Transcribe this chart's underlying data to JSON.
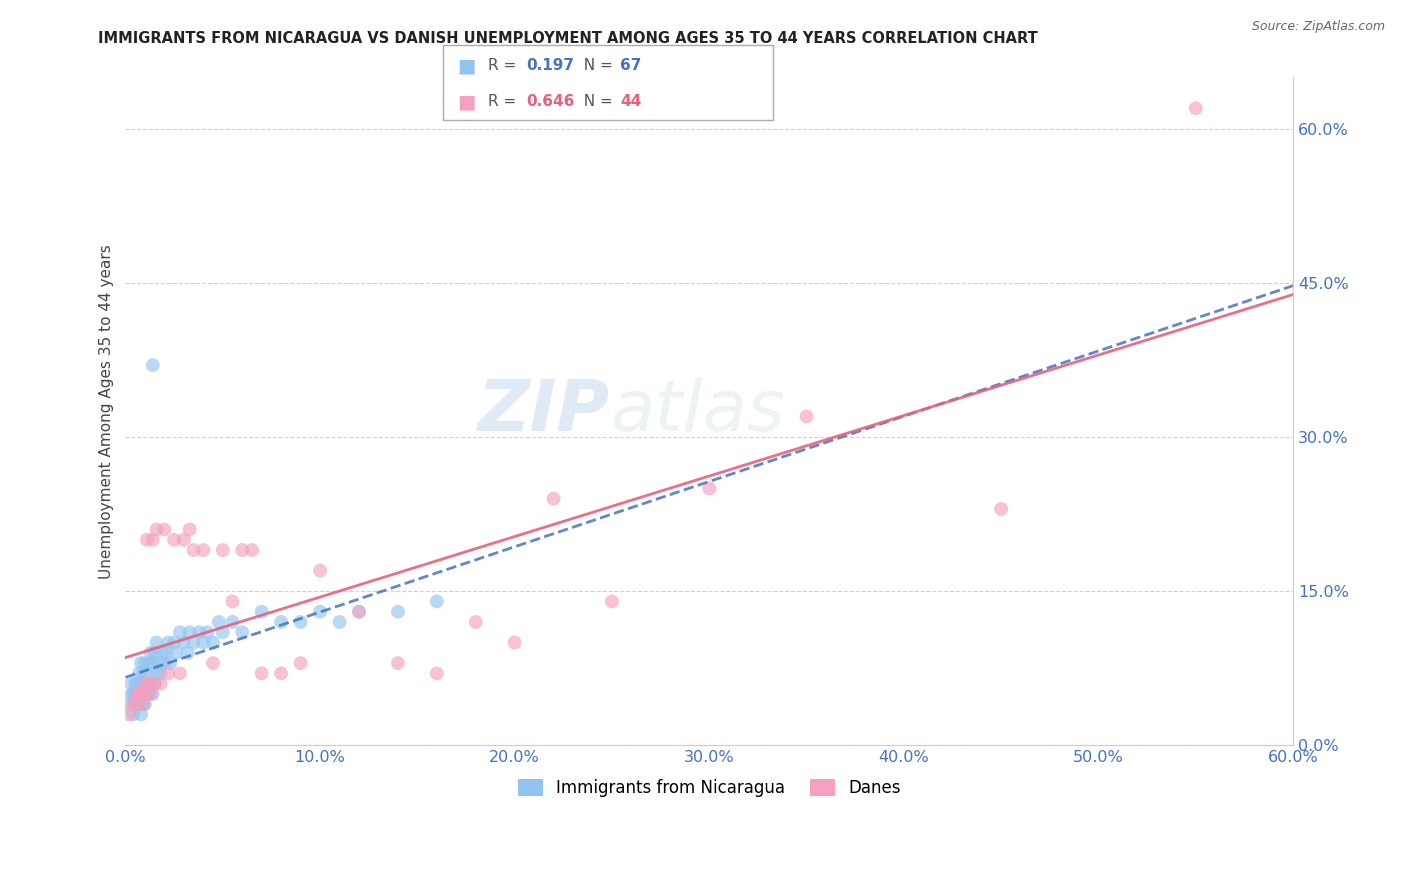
{
  "title": "IMMIGRANTS FROM NICARAGUA VS DANISH UNEMPLOYMENT AMONG AGES 35 TO 44 YEARS CORRELATION CHART",
  "source": "Source: ZipAtlas.com",
  "ylabel": "Unemployment Among Ages 35 to 44 years",
  "xlim": [
    0.0,
    0.6
  ],
  "ylim": [
    0.0,
    0.65
  ],
  "xtick_labels": [
    "0.0%",
    "10.0%",
    "20.0%",
    "30.0%",
    "40.0%",
    "50.0%",
    "60.0%"
  ],
  "xtick_vals": [
    0.0,
    0.1,
    0.2,
    0.3,
    0.4,
    0.5,
    0.6
  ],
  "ytick_labels_right": [
    "60.0%",
    "45.0%",
    "30.0%",
    "15.0%",
    "0.0%"
  ],
  "ytick_vals_right": [
    0.6,
    0.45,
    0.3,
    0.15,
    0.0
  ],
  "ytick_grid": [
    0.6,
    0.45,
    0.3,
    0.15,
    0.0
  ],
  "r1": 0.197,
  "n1": 67,
  "r2": 0.646,
  "n2": 44,
  "color_nicaragua": "#93c4f0",
  "color_danes": "#f5a0be",
  "color_line_nicaragua": "#4472c4",
  "color_line_danes": "#e8607a",
  "watermark_zip": "ZIP",
  "watermark_atlas": "atlas",
  "legend_label_1": "Immigrants from Nicaragua",
  "legend_label_2": "Danes",
  "nicaragua_x": [
    0.002,
    0.003,
    0.003,
    0.004,
    0.004,
    0.005,
    0.005,
    0.005,
    0.006,
    0.006,
    0.006,
    0.007,
    0.007,
    0.007,
    0.008,
    0.008,
    0.008,
    0.008,
    0.009,
    0.009,
    0.009,
    0.01,
    0.01,
    0.01,
    0.011,
    0.011,
    0.012,
    0.012,
    0.013,
    0.013,
    0.014,
    0.014,
    0.015,
    0.015,
    0.016,
    0.016,
    0.017,
    0.018,
    0.019,
    0.02,
    0.021,
    0.022,
    0.023,
    0.025,
    0.026,
    0.028,
    0.03,
    0.032,
    0.033,
    0.035,
    0.038,
    0.04,
    0.042,
    0.045,
    0.048,
    0.05,
    0.055,
    0.06,
    0.014,
    0.07,
    0.08,
    0.09,
    0.1,
    0.11,
    0.12,
    0.14,
    0.16
  ],
  "nicaragua_y": [
    0.04,
    0.05,
    0.06,
    0.03,
    0.05,
    0.04,
    0.05,
    0.06,
    0.04,
    0.05,
    0.06,
    0.04,
    0.05,
    0.07,
    0.03,
    0.05,
    0.06,
    0.08,
    0.04,
    0.05,
    0.07,
    0.04,
    0.06,
    0.08,
    0.05,
    0.07,
    0.05,
    0.08,
    0.06,
    0.09,
    0.05,
    0.08,
    0.06,
    0.09,
    0.07,
    0.1,
    0.08,
    0.07,
    0.09,
    0.08,
    0.09,
    0.1,
    0.08,
    0.1,
    0.09,
    0.11,
    0.1,
    0.09,
    0.11,
    0.1,
    0.11,
    0.1,
    0.11,
    0.1,
    0.12,
    0.11,
    0.12,
    0.11,
    0.37,
    0.13,
    0.12,
    0.12,
    0.13,
    0.12,
    0.13,
    0.13,
    0.14
  ],
  "danes_x": [
    0.002,
    0.004,
    0.005,
    0.006,
    0.007,
    0.008,
    0.009,
    0.01,
    0.01,
    0.011,
    0.012,
    0.013,
    0.014,
    0.015,
    0.016,
    0.018,
    0.02,
    0.022,
    0.025,
    0.028,
    0.03,
    0.033,
    0.035,
    0.04,
    0.045,
    0.05,
    0.055,
    0.06,
    0.065,
    0.07,
    0.08,
    0.09,
    0.1,
    0.12,
    0.14,
    0.16,
    0.18,
    0.2,
    0.22,
    0.25,
    0.3,
    0.35,
    0.45,
    0.55
  ],
  "danes_y": [
    0.03,
    0.04,
    0.04,
    0.05,
    0.05,
    0.05,
    0.04,
    0.05,
    0.06,
    0.2,
    0.06,
    0.05,
    0.2,
    0.06,
    0.21,
    0.06,
    0.21,
    0.07,
    0.2,
    0.07,
    0.2,
    0.21,
    0.19,
    0.19,
    0.08,
    0.19,
    0.14,
    0.19,
    0.19,
    0.07,
    0.07,
    0.08,
    0.17,
    0.13,
    0.08,
    0.07,
    0.12,
    0.1,
    0.24,
    0.14,
    0.25,
    0.32,
    0.23,
    0.62
  ]
}
